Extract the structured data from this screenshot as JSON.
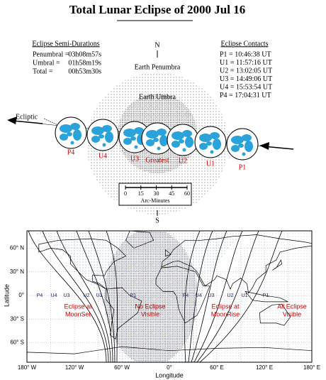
{
  "title": "Total Lunar Eclipse of 2000 Jul 16",
  "semi_durations": {
    "heading": "Eclipse Semi-Durations",
    "rows": [
      {
        "label": "Penumbral =",
        "value": "03h08m57s"
      },
      {
        "label": "Umbral =",
        "value": "01h58m19s"
      },
      {
        "label": "Total =",
        "value": "00h53m30s"
      }
    ]
  },
  "contacts": {
    "heading": "Eclipse Contacts",
    "rows": [
      "P1 = 10:46:38 UT",
      "U1 = 11:57:16 UT",
      "U2 = 13:02:05 UT",
      "U3 = 14:49:06 UT",
      "U4 = 15:53:54 UT",
      "P4 = 17:04:31 UT"
    ]
  },
  "diagram": {
    "north": "N",
    "south": "S",
    "penumbra_label": "Earth Penumbra",
    "umbra_label": "Earth Umbra",
    "ecliptic_label": "Ecliptic",
    "moons": [
      "P4",
      "U4",
      "U3",
      "Greatest",
      "U2",
      "U1",
      "P1"
    ],
    "scale": {
      "ticks": [
        0,
        15,
        30,
        45,
        60
      ],
      "label": "Arc-Minutes"
    }
  },
  "map": {
    "y_axis_label": "Latitude",
    "x_axis_label": "Longitude",
    "yticks": [
      "60° N",
      "30° N",
      "0°",
      "30° S",
      "60° S"
    ],
    "xticks": [
      "180° W",
      "120° W",
      "60° W",
      "0°",
      "60° E",
      "120° E",
      "180° E"
    ],
    "regions": [
      [
        "Eclipse at",
        "MoonSet"
      ],
      [
        "No Eclipse",
        "Visible"
      ],
      [
        "Eclipse at",
        "MoonRise"
      ],
      [
        "All Eclipse",
        "Visible"
      ]
    ],
    "curve_labels_west": [
      "P4",
      "U4",
      "U3",
      "U2",
      "U1",
      "P1"
    ],
    "curve_labels_east": [
      "P4",
      "U4",
      "U3",
      "U2",
      "U1",
      "P1"
    ]
  }
}
